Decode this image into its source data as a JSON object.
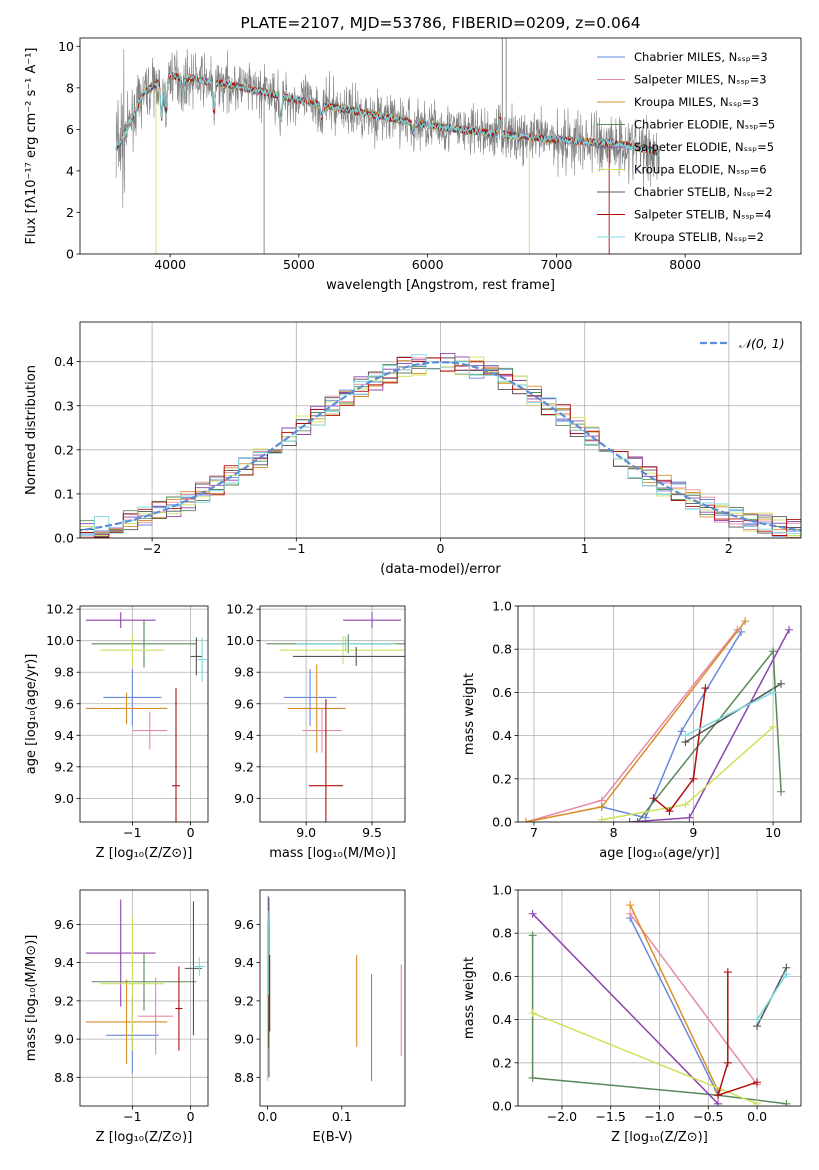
{
  "figure_title": "PLATE=2107, MJD=53786, FIBERID=0209, z=0.064",
  "model_colors": [
    "#6688dd",
    "#e68aa8",
    "#d98e2a",
    "#5a8a5a",
    "#8e44ad",
    "#cfe05a",
    "#555555",
    "#b01010",
    "#7fd9e0"
  ],
  "chart_data": [
    {
      "id": "spectrum",
      "type": "line",
      "title": "PLATE=2107, MJD=53786, FIBERID=0209, z=0.064",
      "xlabel": "wavelength [Angstrom, rest frame]",
      "ylabel": "Flux [fλ10⁻¹⁷ erg cm⁻² s⁻¹ A⁻¹]",
      "xlim": [
        3300,
        8900
      ],
      "ylim": [
        0,
        10.4
      ],
      "xticks": [
        4000,
        5000,
        6000,
        7000,
        8000
      ],
      "yticks": [
        0,
        2,
        4,
        6,
        8,
        10
      ],
      "legend_position": "top-right",
      "legend": [
        "Chabrier MILES, Nₛₛₚ=3",
        "Salpeter MILES, Nₛₛₚ=3",
        "Kroupa MILES, Nₛₛₚ=3",
        "Chabrier ELODIE, Nₛₛₚ=5",
        "Salpeter ELODIE, Nₛₛₚ=5",
        "Kroupa ELODIE, Nₛₛₚ=6",
        "Chabrier STELIB, Nₛₛₚ=2",
        "Salpeter STELIB, Nₛₛₚ=4",
        "Kroupa STELIB, Nₛₛₚ=2"
      ],
      "continuum": {
        "x": [
          3600,
          3800,
          4000,
          4200,
          4500,
          5000,
          5500,
          6000,
          6500,
          7000,
          7500,
          7800
        ],
        "y": [
          5.2,
          7.8,
          8.6,
          8.4,
          8.1,
          7.4,
          6.8,
          6.2,
          5.8,
          5.5,
          5.3,
          4.9
        ]
      },
      "observed_spikes": [
        {
          "x": 3890,
          "y": 0.0
        },
        {
          "x": 4730,
          "y": 0.0
        },
        {
          "x": 6580,
          "y": 10.4
        },
        {
          "x": 6610,
          "y": 10.4
        },
        {
          "x": 6790,
          "y": 0.0
        },
        {
          "x": 7410,
          "y": 0.0
        }
      ]
    },
    {
      "id": "residuals",
      "type": "line",
      "xlabel": "(data-model)/error",
      "ylabel": "Normed distribution",
      "xlim": [
        -2.5,
        2.5
      ],
      "ylim": [
        0,
        0.49
      ],
      "xticks": [
        -2,
        -1,
        0,
        1,
        2
      ],
      "yticks": [
        0.0,
        0.1,
        0.2,
        0.3,
        0.4
      ],
      "grid": true,
      "legend_position": "top-right",
      "legend": [
        "𝒩(0, 1)"
      ],
      "gaussian": {
        "mean": 0,
        "sigma": 1
      }
    },
    {
      "id": "age_vs_Z",
      "type": "scatter",
      "xlabel": "Z [log₁₀(Z/Z⊙)]",
      "ylabel": "age  [log₁₀(age/yr)]",
      "xlim": [
        -1.9,
        0.3
      ],
      "ylim": [
        8.85,
        10.22
      ],
      "xticks": [
        -1,
        0
      ],
      "yticks": [
        9.0,
        9.2,
        9.4,
        9.6,
        9.8,
        10.0,
        10.2
      ],
      "grid": true,
      "points": [
        {
          "x": -1.0,
          "y": 9.64,
          "xerr": 0.5,
          "yerr": 0.18
        },
        {
          "x": -0.7,
          "y": 9.43,
          "xerr": 0.3,
          "yerr": 0.12
        },
        {
          "x": -1.1,
          "y": 9.57,
          "xerr": 0.7,
          "yerr": 0.1
        },
        {
          "x": -0.8,
          "y": 9.98,
          "xerr": 0.9,
          "yerr": 0.15
        },
        {
          "x": -1.2,
          "y": 10.13,
          "xerr": 0.6,
          "yerr": 0.05
        },
        {
          "x": -1.0,
          "y": 9.94,
          "xerr": 0.55,
          "yerr": 0.1
        },
        {
          "x": 0.1,
          "y": 9.9,
          "xerr": 0.1,
          "yerr": 0.12
        },
        {
          "x": -0.25,
          "y": 9.08,
          "xerr": 0.07,
          "yerr": 0.62
        },
        {
          "x": 0.2,
          "y": 9.88,
          "xerr": 0.08,
          "yerr": 0.14
        }
      ]
    },
    {
      "id": "age_vs_mass",
      "type": "scatter",
      "xlabel": "mass [log₁₀(M/M⊙)]",
      "ylabel": "",
      "xlim": [
        8.65,
        9.75
      ],
      "ylim": [
        8.85,
        10.22
      ],
      "xticks": [
        9.0,
        9.5
      ],
      "yticks": [
        9.0,
        9.2,
        9.4,
        9.6,
        9.8,
        10.0,
        10.2
      ],
      "grid": true,
      "points": [
        {
          "x": 9.03,
          "y": 9.64,
          "xerr": 0.2,
          "yerr": 0.18
        },
        {
          "x": 9.12,
          "y": 9.43,
          "xerr": 0.15,
          "yerr": 0.14
        },
        {
          "x": 9.08,
          "y": 9.57,
          "xerr": 0.22,
          "yerr": 0.28
        },
        {
          "x": 9.32,
          "y": 9.98,
          "xerr": 0.62,
          "yerr": 0.06
        },
        {
          "x": 9.5,
          "y": 10.13,
          "xerr": 0.22,
          "yerr": 0.05
        },
        {
          "x": 9.28,
          "y": 9.94,
          "xerr": 0.48,
          "yerr": 0.09
        },
        {
          "x": 9.38,
          "y": 9.9,
          "xerr": 0.48,
          "yerr": 0.06
        },
        {
          "x": 9.15,
          "y": 9.08,
          "xerr": 0.13,
          "yerr": 0.55
        },
        {
          "x": 9.3,
          "y": 9.98,
          "xerr": 0.38,
          "yerr": 0.05
        }
      ]
    },
    {
      "id": "weight_vs_age",
      "type": "line",
      "xlabel": "age  [log₁₀(age/yr)]",
      "ylabel": "mass weight",
      "xlim": [
        6.8,
        10.35
      ],
      "ylim": [
        0,
        1.0
      ],
      "xticks": [
        7,
        8,
        9,
        10
      ],
      "yticks": [
        0.0,
        0.2,
        0.4,
        0.6,
        0.8,
        1.0
      ],
      "grid": true,
      "series": [
        {
          "x": [
            7.85,
            8.4,
            8.85,
            9.6
          ],
          "y": [
            0.07,
            0.02,
            0.42,
            0.88
          ]
        },
        {
          "x": [
            6.9,
            7.85,
            9.55
          ],
          "y": [
            0.0,
            0.1,
            0.89
          ]
        },
        {
          "x": [
            6.9,
            7.85,
            9.65
          ],
          "y": [
            0.0,
            0.07,
            0.93
          ]
        },
        {
          "x": [
            8.3,
            10.0,
            10.1
          ],
          "y": [
            0.0,
            0.79,
            0.14
          ]
        },
        {
          "x": [
            8.2,
            8.95,
            10.2
          ],
          "y": [
            0.0,
            0.02,
            0.89
          ]
        },
        {
          "x": [
            7.85,
            8.9,
            10.0
          ],
          "y": [
            0.01,
            0.08,
            0.44
          ]
        },
        {
          "x": [
            8.9,
            10.1
          ],
          "y": [
            0.37,
            0.64
          ]
        },
        {
          "x": [
            8.5,
            8.7,
            9.0,
            9.15
          ],
          "y": [
            0.11,
            0.05,
            0.2,
            0.62
          ]
        },
        {
          "x": [
            8.9,
            10.0
          ],
          "y": [
            0.4,
            0.6
          ]
        }
      ]
    },
    {
      "id": "mass_vs_Z",
      "type": "scatter",
      "xlabel": "Z [log₁₀(Z/Z⊙)]",
      "ylabel": "mass [log₁₀(M/M⊙)]",
      "xlim": [
        -1.9,
        0.3
      ],
      "ylim": [
        8.65,
        9.78
      ],
      "xticks": [
        -1,
        0
      ],
      "yticks": [
        8.8,
        9.0,
        9.2,
        9.4,
        9.6
      ],
      "grid": true,
      "points": [
        {
          "x": -1.0,
          "y": 9.02,
          "xerr": 0.45,
          "yerr": 0.2
        },
        {
          "x": -0.6,
          "y": 9.12,
          "xerr": 0.3,
          "yerr": 0.2
        },
        {
          "x": -1.1,
          "y": 9.09,
          "xerr": 0.7,
          "yerr": 0.22
        },
        {
          "x": -0.8,
          "y": 9.3,
          "xerr": 0.9,
          "yerr": 0.15
        },
        {
          "x": -1.2,
          "y": 9.45,
          "xerr": 0.6,
          "yerr": 0.28
        },
        {
          "x": -1.0,
          "y": 9.29,
          "xerr": 0.55,
          "yerr": 0.35
        },
        {
          "x": 0.05,
          "y": 9.37,
          "xerr": 0.15,
          "yerr": 0.35
        },
        {
          "x": -0.2,
          "y": 9.16,
          "xerr": 0.06,
          "yerr": 0.22
        },
        {
          "x": 0.15,
          "y": 9.38,
          "xerr": 0.1,
          "yerr": 0.05
        }
      ]
    },
    {
      "id": "mass_vs_ebv",
      "type": "scatter",
      "xlabel": "E(B-V)",
      "ylabel": "",
      "xlim": [
        -0.01,
        0.185
      ],
      "ylim": [
        8.65,
        9.78
      ],
      "xticks": [
        0.0,
        0.1
      ],
      "yticks": [
        8.8,
        9.0,
        9.2,
        9.4,
        9.6
      ],
      "grid": false,
      "points": [
        {
          "x": 0.14,
          "y": 9.06,
          "yerr": 0.28
        },
        {
          "x": 0.18,
          "y": 9.15,
          "yerr": 0.24
        },
        {
          "x": 0.12,
          "y": 9.2,
          "yerr": 0.24
        },
        {
          "x": 0.001,
          "y": 9.35,
          "yerr": 0.4
        },
        {
          "x": 0.002,
          "y": 9.5,
          "yerr": 0.24
        },
        {
          "x": 0.0,
          "y": 9.2,
          "yerr": 0.42
        },
        {
          "x": 0.002,
          "y": 9.2,
          "yerr": 0.4
        },
        {
          "x": 0.003,
          "y": 9.24,
          "yerr": 0.2
        },
        {
          "x": 0.001,
          "y": 9.45,
          "yerr": 0.22
        }
      ]
    },
    {
      "id": "weight_vs_Z",
      "type": "line",
      "xlabel": "Z [log₁₀(Z/Z⊙)]",
      "ylabel": "mass weight",
      "xlim": [
        -2.45,
        0.45
      ],
      "ylim": [
        0,
        1.0
      ],
      "xticks": [
        -2.0,
        -1.5,
        -1.0,
        -0.5,
        0.0
      ],
      "yticks": [
        0.0,
        0.2,
        0.4,
        0.6,
        0.8,
        1.0
      ],
      "grid": true,
      "series": [
        {
          "x": [
            -1.3,
            -0.4
          ],
          "y": [
            0.87,
            0.05
          ]
        },
        {
          "x": [
            -1.3,
            0.0
          ],
          "y": [
            0.89,
            0.1
          ]
        },
        {
          "x": [
            -1.3,
            -0.4
          ],
          "y": [
            0.93,
            0.07
          ]
        },
        {
          "x": [
            -2.3,
            -2.3,
            -0.4,
            0.3
          ],
          "y": [
            0.79,
            0.13,
            0.05,
            0.01
          ]
        },
        {
          "x": [
            -2.3,
            -0.4
          ],
          "y": [
            0.89,
            0.01
          ]
        },
        {
          "x": [
            -2.3,
            0.0
          ],
          "y": [
            0.43,
            0.01
          ]
        },
        {
          "x": [
            0.0,
            0.3
          ],
          "y": [
            0.37,
            0.64
          ]
        },
        {
          "x": [
            -0.3,
            -0.3,
            -0.4,
            0.0
          ],
          "y": [
            0.62,
            0.2,
            0.05,
            0.11
          ]
        },
        {
          "x": [
            0.0,
            0.3
          ],
          "y": [
            0.4,
            0.61
          ]
        }
      ]
    }
  ]
}
